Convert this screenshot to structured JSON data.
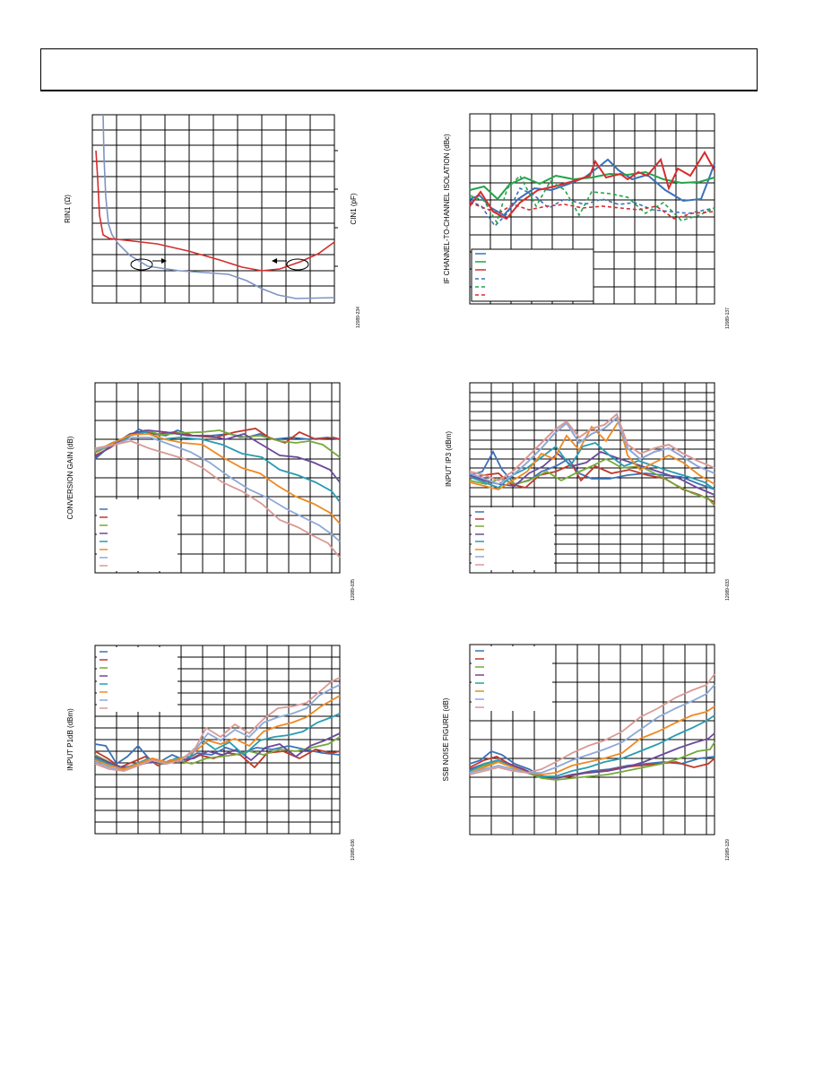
{
  "charts": [
    {
      "id": "rin-cin",
      "ylabel": "RIN1 (Ω)",
      "ylabel2": "CIN1 (pF)",
      "figure_id": "12089-234",
      "colors": [
        "#7f93c4",
        "#d62c2c"
      ]
    },
    {
      "id": "if-isolation",
      "ylabel": "IF CHANNEL-TO-CHANNEL ISOLATION (dBc)",
      "figure_id": "12089-137",
      "colors": [
        "#3a72b8",
        "#25a34a",
        "#d62c2c"
      ]
    },
    {
      "id": "conversion-gain",
      "ylabel": "CONVERSION GAIN (dB)",
      "figure_id": "12089-035",
      "colors": [
        "#3a72b8",
        "#c0392b",
        "#77a83a",
        "#6a4a9a",
        "#2a9cb0",
        "#ee8a22",
        "#8fa8d8",
        "#d99a96"
      ]
    },
    {
      "id": "input-ip3",
      "ylabel": "INPUT IP3 (dBm)",
      "figure_id": "12089-033",
      "colors": [
        "#3a72b8",
        "#c0392b",
        "#77a83a",
        "#6a4a9a",
        "#2a9cb0",
        "#ee8a22",
        "#8fa8d8",
        "#d99a96"
      ]
    },
    {
      "id": "input-p1db",
      "ylabel": "INPUT P1dB (dBm)",
      "figure_id": "12089-036",
      "colors": [
        "#3a72b8",
        "#c0392b",
        "#77a83a",
        "#6a4a9a",
        "#2a9cb0",
        "#ee8a22",
        "#8fa8d8",
        "#d99a96"
      ]
    },
    {
      "id": "ssb-noise-figure",
      "ylabel": "SSB NOISE FIGURE (dB)",
      "figure_id": "12089-129",
      "colors": [
        "#3a72b8",
        "#c0392b",
        "#77a83a",
        "#6a4a9a",
        "#2a9cb0",
        "#ee8a22",
        "#8fa8d8",
        "#d99a96"
      ]
    }
  ]
}
